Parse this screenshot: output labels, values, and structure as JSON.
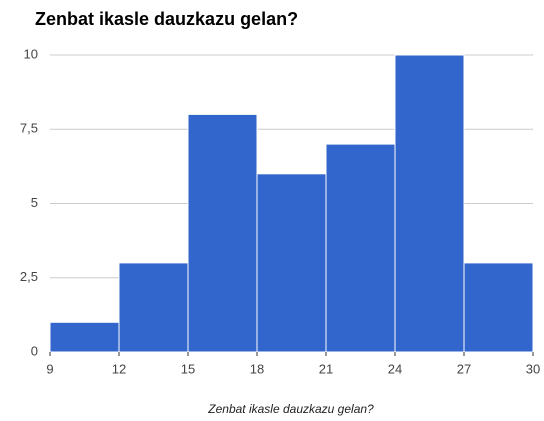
{
  "chart_data": {
    "type": "histogram",
    "title": "Zenbat ikasle dauzkazu gelan?",
    "x_label": "Zenbat ikasle dauzkazu gelan?",
    "bins": [
      9,
      12,
      15,
      18,
      21,
      24,
      27,
      30
    ],
    "counts": [
      1,
      3,
      8,
      6,
      7,
      10,
      3
    ],
    "color": "#3366cc",
    "xlim": [
      9,
      30
    ],
    "xticks": [
      9,
      12,
      15,
      18,
      21,
      24,
      27,
      30
    ],
    "ylim": [
      0,
      10
    ],
    "yticks": [
      0,
      {
        "value": 2.5,
        "label": "2,5"
      },
      5,
      {
        "value": 7.5,
        "label": "7,5"
      },
      10
    ],
    "grid": true
  }
}
